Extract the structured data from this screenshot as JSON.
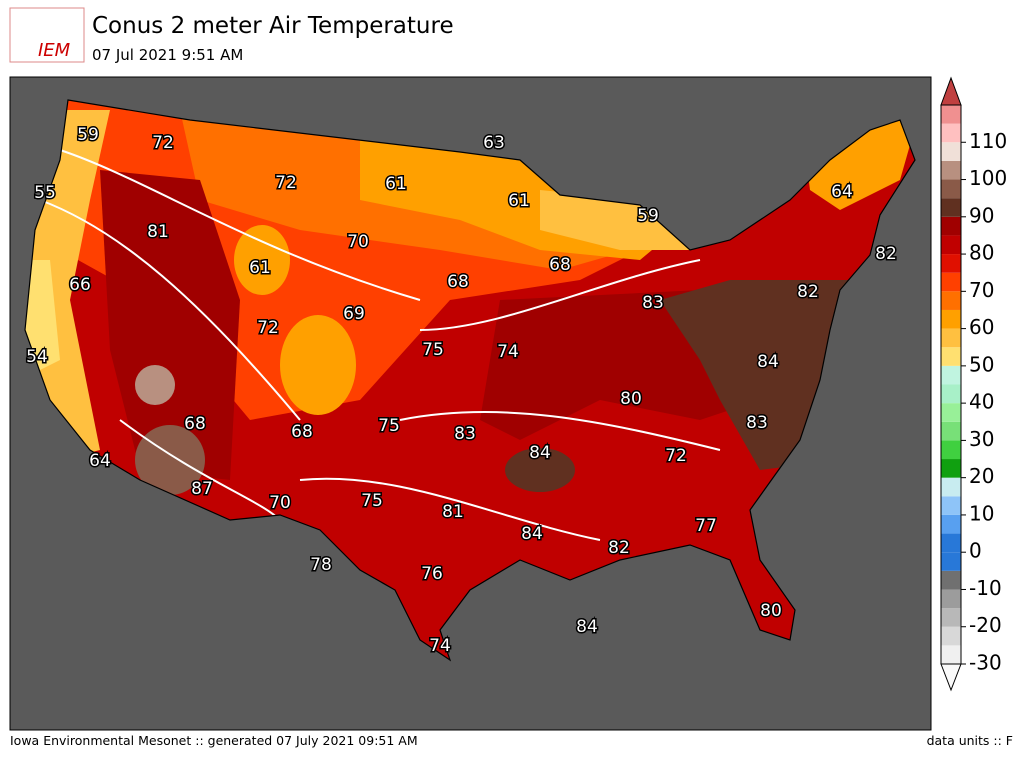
{
  "header": {
    "title": "Conus 2 meter Air Temperature",
    "subtitle": "07 Jul 2021 9:51 AM",
    "logo": "IEM"
  },
  "map": {
    "labels": [
      59,
      72,
      55,
      72,
      61,
      63,
      61,
      59,
      64,
      81,
      70,
      61,
      82,
      66,
      68,
      68,
      82,
      83,
      72,
      69,
      54,
      75,
      74,
      84,
      80,
      68,
      68,
      75,
      83,
      83,
      84,
      72,
      64,
      87,
      70,
      75,
      81,
      84,
      77,
      82,
      78,
      76,
      80,
      84,
      74
    ]
  },
  "colorbar": {
    "range": [
      -30,
      120
    ],
    "ticks": [
      -30,
      -20,
      -10,
      0,
      10,
      20,
      30,
      40,
      50,
      60,
      70,
      80,
      90,
      100,
      110
    ],
    "colors": [
      "#f0f0f0",
      "#d8d8d8",
      "#b8b8b8",
      "#9c9c9c",
      "#707070",
      "#2878d8",
      "#2878d8",
      "#58a0f0",
      "#8ec4f8",
      "#c8ecf0",
      "#10a010",
      "#40d040",
      "#78e078",
      "#98f098",
      "#a8f0c8",
      "#c0f4e0",
      "#ffe070",
      "#ffc040",
      "#ffa000",
      "#ff7000",
      "#ff4000",
      "#e01000",
      "#c00000",
      "#a00000",
      "#603020",
      "#8a5a48",
      "#b89080",
      "#f0e0d8",
      "#ffc0c0",
      "#f09090"
    ]
  },
  "footer": {
    "left": "Iowa Environmental Mesonet :: generated 07 July 2021 09:51 AM",
    "right": "data units :: F"
  }
}
